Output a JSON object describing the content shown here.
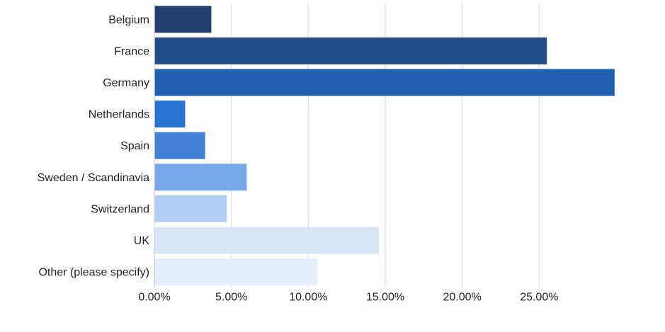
{
  "chart_data": {
    "type": "bar",
    "orientation": "horizontal",
    "categories": [
      "Belgium",
      "France",
      "Germany",
      "Netherlands",
      "Spain",
      "Sweden / Scandinavia",
      "Switzerland",
      "UK",
      "Other (please specify)"
    ],
    "values": [
      3.7,
      25.5,
      29.9,
      2.0,
      3.3,
      6.0,
      4.7,
      14.6,
      10.6
    ],
    "value_unit": "%",
    "xlim": [
      0,
      30
    ],
    "xticks": [
      0,
      5,
      10,
      15,
      20,
      25
    ],
    "xtick_labels": [
      "0.00%",
      "5.00%",
      "10.00%",
      "15.00%",
      "20.00%",
      "25.00%"
    ],
    "bar_colors": [
      "#233f70",
      "#214e87",
      "#2060b1",
      "#2673d2",
      "#4281d6",
      "#77a8ea",
      "#b1cff4",
      "#d7e5f5",
      "#e5eefb"
    ],
    "grid": true,
    "legend": "none"
  }
}
